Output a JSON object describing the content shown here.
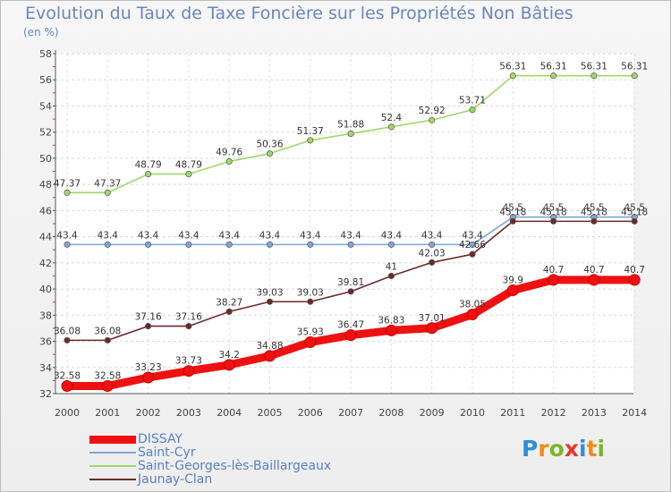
{
  "title": "Evolution du Taux de Taxe Foncière sur les Propriétés Non Bâties",
  "unit_label": "(en %)",
  "logo": {
    "letters": [
      "P",
      "r",
      "o",
      "x",
      "i",
      "t",
      "i"
    ],
    "colors": [
      "#2f8fd6",
      "#f28c1a",
      "#79b829",
      "#e6382f",
      "#2f8fd6",
      "#f28c1a",
      "#79b829"
    ]
  },
  "chart_data": {
    "type": "line",
    "x": [
      "2000",
      "2001",
      "2002",
      "2003",
      "2004",
      "2005",
      "2006",
      "2007",
      "2008",
      "2009",
      "2010",
      "2011",
      "2012",
      "2013",
      "2014"
    ],
    "ylim": [
      32,
      58
    ],
    "yticks": [
      "32",
      "34",
      "36",
      "38",
      "40",
      "42",
      "44",
      "46",
      "48",
      "50",
      "52",
      "54",
      "56",
      "58"
    ],
    "grid": true,
    "legend_position": "bottom-left",
    "series": [
      {
        "name": "DISSAY",
        "color": "#ee1111",
        "values": [
          32.58,
          32.58,
          33.23,
          33.73,
          34.2,
          34.88,
          35.93,
          36.47,
          36.83,
          37.01,
          38.05,
          39.9,
          40.7,
          40.7,
          40.7
        ],
        "labels": [
          "32.58",
          "32.58",
          "33.23",
          "33.73",
          "34.2",
          "34.88",
          "35.93",
          "36.47",
          "36.83",
          "37.01",
          "38.05",
          "39.9",
          "40.7",
          "40.7",
          "40.7"
        ]
      },
      {
        "name": "Saint-Cyr",
        "color": "#7fa6d6",
        "values": [
          43.4,
          43.4,
          43.4,
          43.4,
          43.4,
          43.4,
          43.4,
          43.4,
          43.4,
          43.4,
          43.4,
          45.5,
          45.5,
          45.5,
          45.5
        ],
        "labels": [
          "43.4",
          "43.4",
          "43.4",
          "43.4",
          "43.4",
          "43.4",
          "43.4",
          "43.4",
          "43.4",
          "43.4",
          "43.4",
          "45.5",
          "45.5",
          "45.5",
          "45.5"
        ]
      },
      {
        "name": "Saint-Georges-lès-Baillargeaux",
        "color": "#9ed86a",
        "values": [
          47.37,
          47.37,
          48.79,
          48.79,
          49.76,
          50.36,
          51.37,
          51.88,
          52.4,
          52.92,
          53.71,
          56.31,
          56.31,
          56.31,
          56.31
        ],
        "labels": [
          "47.37",
          "47.37",
          "48.79",
          "48.79",
          "49.76",
          "50.36",
          "51.37",
          "51.88",
          "52.4",
          "52.92",
          "53.71",
          "56.31",
          "56.31",
          "56.31",
          "56.31"
        ]
      },
      {
        "name": "Jaunay-Clan",
        "color": "#6b2a2a",
        "values": [
          36.08,
          36.08,
          37.16,
          37.16,
          38.27,
          39.03,
          39.03,
          39.81,
          41,
          42.03,
          42.66,
          45.18,
          45.18,
          45.18,
          45.18
        ],
        "labels": [
          "36.08",
          "36.08",
          "37.16",
          "37.16",
          "38.27",
          "39.03",
          "39.03",
          "39.81",
          "41",
          "42.03",
          "42.66",
          "45.18",
          "45.18",
          "45.18",
          "45.18"
        ]
      }
    ]
  }
}
